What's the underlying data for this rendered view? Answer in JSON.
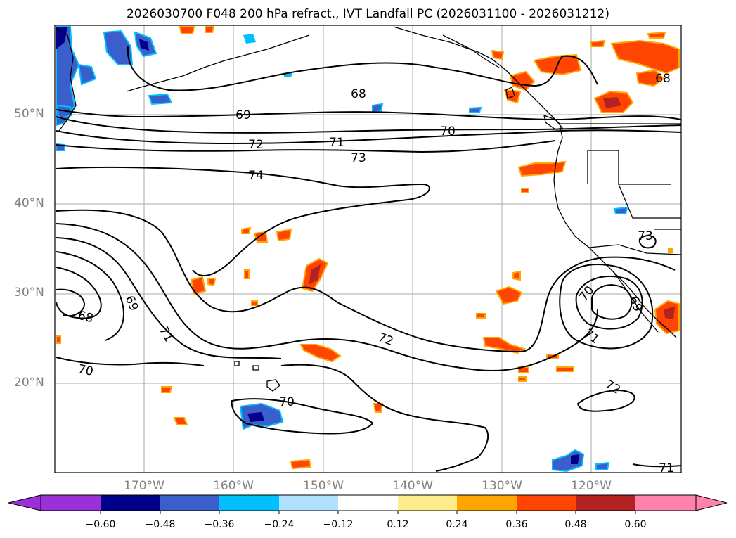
{
  "title": "2026030700 F048 200 hPa refract., IVT Landfall PC (2026031100 - 2026031212)",
  "colors": {
    "land_outline": "#000000",
    "grid": "#aaaaaa",
    "colorbar": [
      "#9b30d9",
      "#00008b",
      "#3a5fcd",
      "#00bfff",
      "#b0e2ff",
      "#ffffff",
      "#ffec8b",
      "#ffa500",
      "#ff4500",
      "#b22222",
      "#ff82ab"
    ]
  },
  "map": {
    "extent": {
      "lon_min": -180,
      "lon_max": -110,
      "lat_min": 10,
      "lat_max": 60
    },
    "lat_labels": [
      "50°N",
      "40°N",
      "30°N",
      "20°N"
    ],
    "lon_labels": [
      "170°W",
      "160°W",
      "150°W",
      "140°W",
      "130°W",
      "120°W"
    ]
  },
  "contour_labels": [
    "68",
    "69",
    "70",
    "71",
    "72",
    "73",
    "74",
    "69",
    "68",
    "71",
    "70",
    "72",
    "70",
    "70",
    "69",
    "71",
    "72",
    "73",
    "68",
    "71"
  ],
  "colorbar": {
    "ticks": [
      "−0.60",
      "−0.48",
      "−0.36",
      "−0.24",
      "−0.12",
      "0.12",
      "0.24",
      "0.36",
      "0.48",
      "0.60"
    ]
  }
}
